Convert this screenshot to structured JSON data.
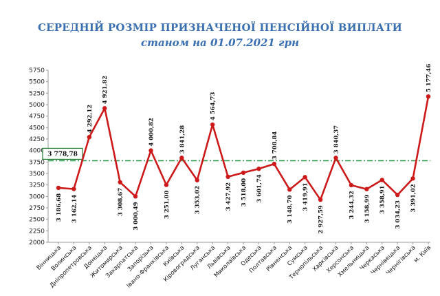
{
  "title": "СЕРЕДНІЙ РОЗМІР ПРИЗНАЧЕНОЇ ПЕНСІЙНОЇ ВИПЛАТИ",
  "subtitle": "станом на 01.07.2021 грн",
  "colors": {
    "title": "#3a6fb2",
    "line": "#cc1a1a",
    "average": "#2e9b4a",
    "average_box": "#1f7a2e"
  },
  "chart_data": {
    "type": "line",
    "title": "СЕРЕДНІЙ РОЗМІР ПРИЗНАЧЕНОЇ ПЕНСІЙНОЇ ВИПЛАТИ",
    "subtitle": "станом на 01.07.2021 грн",
    "xlabel": "",
    "ylabel": "",
    "ylim": [
      2000,
      5750
    ],
    "yticks": [
      "2000",
      "2250",
      "2500",
      "2750",
      "3000",
      "3250",
      "3500",
      "3750",
      "4000",
      "4250",
      "4500",
      "4750",
      "5000",
      "5250",
      "5500",
      "5750"
    ],
    "grid": false,
    "categories": [
      "Вінницька",
      "Волинська",
      "Дніпропетровська",
      "Донецька",
      "Житомирська",
      "Закарпатська",
      "Запорізька",
      "Івано-Франківська",
      "Київська",
      "Кіровоградська",
      "Луганська",
      "Львівська",
      "Миколаївська",
      "Одеська",
      "Полтавська",
      "Рівненська",
      "Сумська",
      "Тернопільська",
      "Харківська",
      "Херсонська",
      "Хмельницька",
      "Черкаська",
      "Чернівецька",
      "Чернігівська",
      "м. Київ"
    ],
    "series": [
      {
        "values": [
          3186.68,
          3162.14,
          4292.12,
          4921.82,
          3308.67,
          3000.49,
          4000.82,
          3251.0,
          3841.28,
          3353.02,
          4564.73,
          3427.92,
          3518.0,
          3601.74,
          3708.84,
          3148.7,
          3419.91,
          2927.59,
          3840.37,
          3244.32,
          3158.99,
          3358.91,
          3034.23,
          3391.02,
          5177.46
        ],
        "labels": [
          "3 186,68",
          "3 162,14",
          "4 292,12",
          "4 921,82",
          "3 308,67",
          "3 000,49",
          "4 000,82",
          "3 251,00",
          "3 841,28",
          "3 353,02",
          "4 564,73",
          "3 427,92",
          "3 518,00",
          "3 601,74",
          "3 708,84",
          "3 148,70",
          "3 419,91",
          "2 927,59",
          "3 840,37",
          "3 244,32",
          "3 158,99",
          "3 358,91",
          "3 034,23",
          "3 391,02",
          "5 177,46"
        ]
      }
    ],
    "average": {
      "value": 3778.78,
      "label": "3 778,78"
    }
  }
}
